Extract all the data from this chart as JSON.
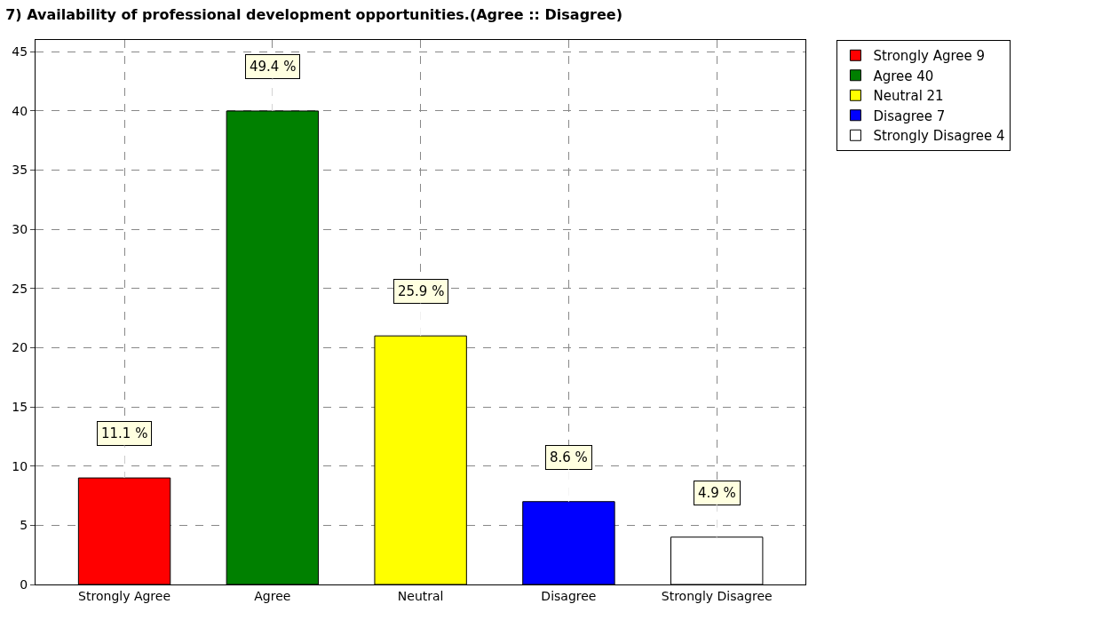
{
  "chart_data": {
    "type": "bar",
    "title": "7) Availability of professional development opportunities.(Agree :: Disagree)",
    "categories": [
      "Strongly Agree",
      "Agree",
      "Neutral",
      "Disagree",
      "Strongly Disagree"
    ],
    "series": [
      {
        "name": "Strongly Agree 9",
        "color": "#ff0000",
        "values": [
          9,
          null,
          null,
          null,
          null
        ]
      },
      {
        "name": "Agree 40",
        "color": "#008000",
        "values": [
          null,
          40,
          null,
          null,
          null
        ]
      },
      {
        "name": "Neutral 21",
        "color": "#ffff00",
        "values": [
          null,
          null,
          21,
          null,
          null
        ]
      },
      {
        "name": "Disagree 7",
        "color": "#0000ff",
        "values": [
          null,
          null,
          null,
          7,
          null
        ]
      },
      {
        "name": "Strongly Disagree 4",
        "color": "#ffffff",
        "values": [
          null,
          null,
          null,
          null,
          4
        ]
      }
    ],
    "annotations": [
      {
        "text": "11.1 %",
        "x": "Strongly Agree",
        "y": 9
      },
      {
        "text": "49.4 %",
        "x": "Agree",
        "y": 40
      },
      {
        "text": "25.9 %",
        "x": "Neutral",
        "y": 21
      },
      {
        "text": "8.6 %",
        "x": "Disagree",
        "y": 7
      },
      {
        "text": "4.9 %",
        "x": "Strongly Disagree",
        "y": 4
      }
    ],
    "ylim": [
      0,
      46
    ],
    "yticks": [
      0,
      5,
      10,
      15,
      20,
      25,
      30,
      35,
      40,
      45
    ],
    "grid": true,
    "legend": "top right"
  }
}
